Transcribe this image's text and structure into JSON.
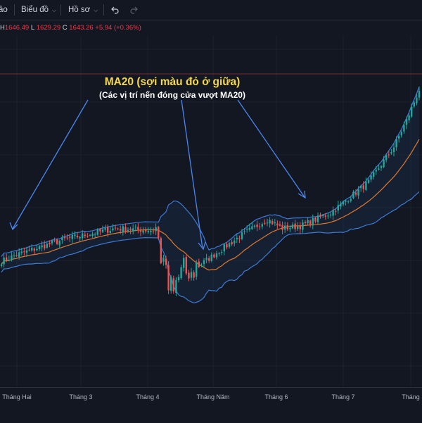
{
  "toolbar": {
    "item_partial": "ảo",
    "chart_menu": "Biểu đồ",
    "profile_menu": "Hồ sơ",
    "undo_icon": "undo-icon",
    "redo_icon": "redo-icon"
  },
  "ohlc": {
    "h_label": "H",
    "h_value": "1646.49",
    "l_label": "L",
    "l_value": "1629.29",
    "c_label": "C",
    "c_value": "1643.26",
    "change": "+5.94 (+0.36%)"
  },
  "annotation": {
    "title": "MA20 (sợi màu đỏ ở giữa)",
    "subtitle": "(Các vị trí nến đóng cửa vượt MA20)"
  },
  "colors": {
    "background": "#131722",
    "up": "#26a69a",
    "down": "#ef5350",
    "ma20": "#e0782b",
    "band": "#3d7ad6",
    "arrow": "#4a86f0",
    "annotation_title": "#f5d94a",
    "price_line": "#7a2b33"
  },
  "chart_data": {
    "type": "candlestick",
    "indicator": "Bollinger Bands (20) with MA20 middle line",
    "x_labels": [
      "Tháng Hai",
      "Tháng 3",
      "Tháng 4",
      "Tháng Năm",
      "Tháng 6",
      "Tháng 7",
      "Tháng"
    ],
    "ylim": [
      1060,
      1700
    ],
    "current_price": 1643.26,
    "key_points": [
      {
        "day": 0,
        "price": 1250
      },
      {
        "day": 6,
        "price": 1265
      },
      {
        "day": 25,
        "price": 1300
      },
      {
        "day": 45,
        "price": 1325
      },
      {
        "day": 60,
        "price": 1320
      },
      {
        "day": 63,
        "price": 1240
      },
      {
        "day": 66,
        "price": 1200
      },
      {
        "day": 70,
        "price": 1210
      },
      {
        "day": 74,
        "price": 1230
      },
      {
        "day": 78,
        "price": 1240
      },
      {
        "day": 84,
        "price": 1265
      },
      {
        "day": 95,
        "price": 1310
      },
      {
        "day": 105,
        "price": 1345
      },
      {
        "day": 111,
        "price": 1325
      },
      {
        "day": 118,
        "price": 1330
      },
      {
        "day": 130,
        "price": 1360
      },
      {
        "day": 145,
        "price": 1430
      },
      {
        "day": 155,
        "price": 1510
      },
      {
        "day": 160,
        "price": 1570
      },
      {
        "day": 165,
        "price": 1640
      }
    ]
  }
}
